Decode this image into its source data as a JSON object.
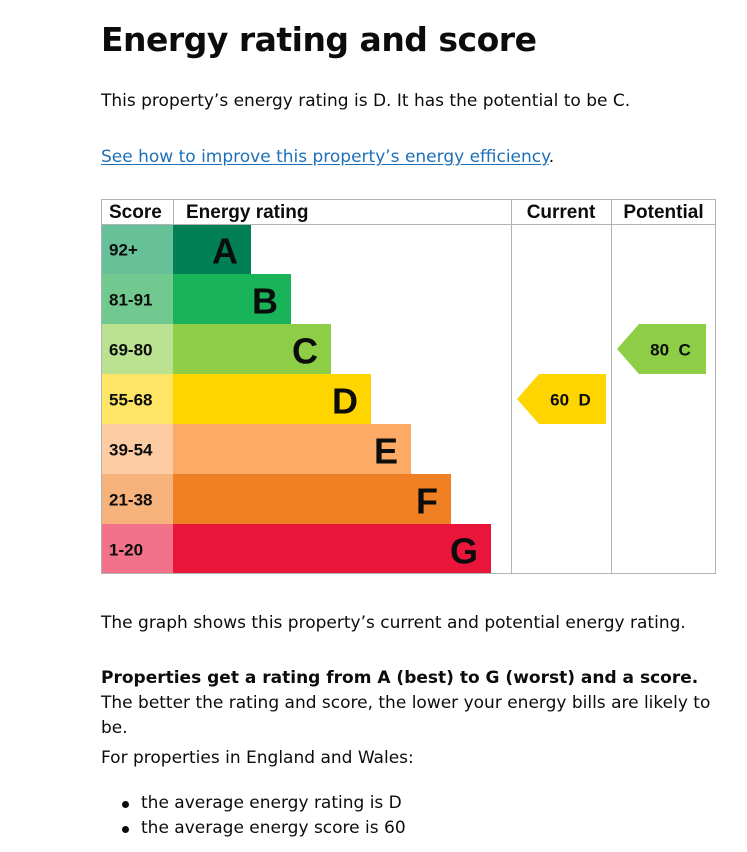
{
  "page": {
    "title": "Energy rating and score",
    "intro": "This property’s energy rating is D. It has the potential to be C.",
    "improve_link": "See how to improve this property’s energy efficiency",
    "improve_link_suffix": ".",
    "graph_note": "The graph shows this property’s current and potential energy rating.",
    "ratings_bold": "Properties get a rating from A (best) to G (worst) and a score.",
    "ratings_rest": " The better the rating and score, the lower your energy bills are likely to be.",
    "england_wales": "For properties in England and Wales:",
    "bullets": [
      "the average energy rating is D",
      "the average energy score is 60"
    ]
  },
  "chart_data": {
    "type": "bar",
    "headers": {
      "score": "Score",
      "rating": "Energy rating",
      "current": "Current",
      "potential": "Potential"
    },
    "bands": [
      {
        "letter": "A",
        "range": "92+",
        "color": "#008054",
        "range_bg": "#66c198"
      },
      {
        "letter": "B",
        "range": "81-91",
        "color": "#19b459",
        "range_bg": "#72c98f"
      },
      {
        "letter": "C",
        "range": "69-80",
        "color": "#8dce46",
        "range_bg": "#bae291"
      },
      {
        "letter": "D",
        "range": "55-68",
        "color": "#ffd500",
        "range_bg": "#ffe566"
      },
      {
        "letter": "E",
        "range": "39-54",
        "color": "#fcaa65",
        "range_bg": "#fdcca3"
      },
      {
        "letter": "F",
        "range": "21-38",
        "color": "#ef8023",
        "range_bg": "#f5b27b"
      },
      {
        "letter": "G",
        "range": "1-20",
        "color": "#e9153b",
        "range_bg": "#f27389"
      }
    ],
    "current": {
      "score": 60,
      "letter": "D",
      "label": "60  D"
    },
    "potential": {
      "score": 80,
      "letter": "C",
      "label": "80  C"
    }
  }
}
